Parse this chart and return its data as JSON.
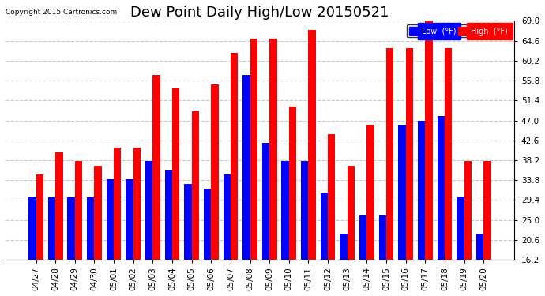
{
  "title": "Dew Point Daily High/Low 20150521",
  "copyright": "Copyright 2015 Cartronics.com",
  "categories": [
    "04/27",
    "04/28",
    "04/29",
    "04/30",
    "05/01",
    "05/02",
    "05/03",
    "05/04",
    "05/05",
    "05/06",
    "05/07",
    "05/08",
    "05/09",
    "05/10",
    "05/11",
    "05/12",
    "05/13",
    "05/14",
    "05/15",
    "05/16",
    "05/17",
    "05/18",
    "05/19",
    "05/20"
  ],
  "low_values": [
    30,
    30,
    30,
    30,
    34,
    34,
    38,
    36,
    33,
    32,
    35,
    57,
    42,
    38,
    38,
    31,
    22,
    26,
    26,
    46,
    47,
    48,
    30,
    22
  ],
  "high_values": [
    35,
    40,
    38,
    37,
    41,
    41,
    57,
    54,
    49,
    55,
    62,
    65,
    65,
    50,
    67,
    44,
    37,
    46,
    63,
    63,
    69,
    63,
    38,
    38
  ],
  "low_color": "#0000ff",
  "high_color": "#ff0000",
  "background_color": "#ffffff",
  "grid_color": "#c8c8c8",
  "ylim": [
    16.2,
    69.0
  ],
  "yticks": [
    16.2,
    20.6,
    25.0,
    29.4,
    33.8,
    38.2,
    42.6,
    47.0,
    51.4,
    55.8,
    60.2,
    64.6,
    69.0
  ],
  "legend_low_label": "Low  (°F)",
  "legend_high_label": "High  (°F)",
  "title_fontsize": 13,
  "tick_fontsize": 7.5,
  "bar_width": 0.38,
  "figwidth": 6.9,
  "figheight": 3.75,
  "dpi": 100
}
